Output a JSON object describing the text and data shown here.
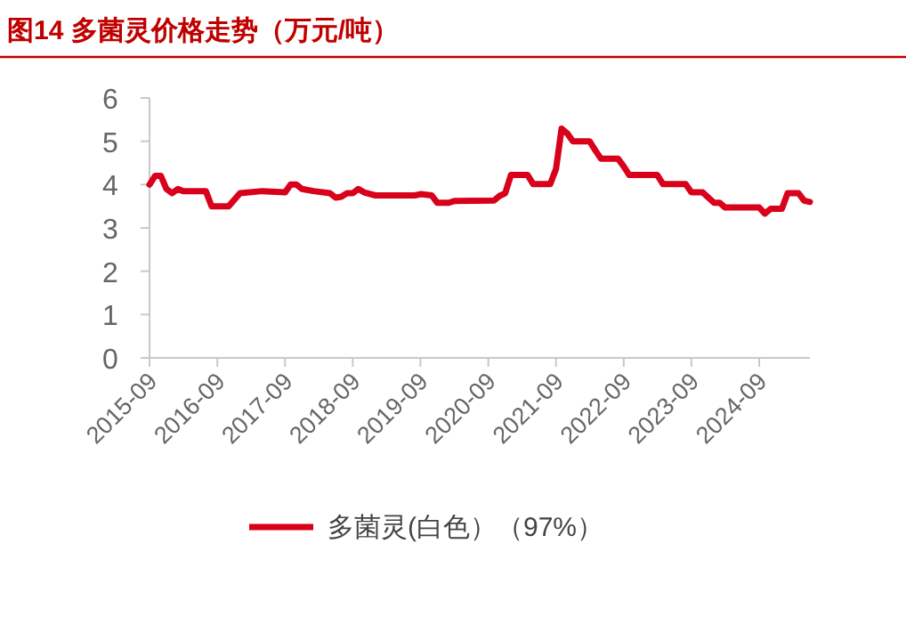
{
  "chart_data": {
    "type": "line",
    "title": "图14  多菌灵价格走势（万元/吨）",
    "x": [
      "2015-09",
      "2015-10",
      "2015-11",
      "2015-12",
      "2016-01",
      "2016-02",
      "2016-03",
      "2016-07",
      "2016-08",
      "2016-11",
      "2017-01",
      "2017-05",
      "2017-09",
      "2017-10",
      "2017-11",
      "2017-12",
      "2018-02",
      "2018-05",
      "2018-06",
      "2018-07",
      "2018-08",
      "2018-09",
      "2018-10",
      "2018-11",
      "2019-01",
      "2019-08",
      "2019-09",
      "2019-11",
      "2019-12",
      "2020-02",
      "2020-03",
      "2020-10",
      "2020-11",
      "2020-12",
      "2021-01",
      "2021-04",
      "2021-05",
      "2021-08",
      "2021-09",
      "2021-10",
      "2021-11",
      "2021-12",
      "2022-03",
      "2022-04",
      "2022-05",
      "2022-08",
      "2022-09",
      "2022-10",
      "2023-03",
      "2023-04",
      "2023-08",
      "2023-09",
      "2023-11",
      "2024-01",
      "2024-02",
      "2024-03",
      "2024-09",
      "2024-10",
      "2024-11",
      "2025-01",
      "2025-02",
      "2025-04",
      "2025-05",
      "2025-06"
    ],
    "series": [
      {
        "name": "多菌灵(白色）（97%）",
        "color": "#d9001b",
        "values": [
          4.0,
          4.2,
          4.2,
          3.9,
          3.8,
          3.9,
          3.85,
          3.85,
          3.5,
          3.5,
          3.8,
          3.85,
          3.82,
          4.0,
          4.0,
          3.9,
          3.85,
          3.8,
          3.7,
          3.72,
          3.8,
          3.8,
          3.9,
          3.82,
          3.75,
          3.75,
          3.78,
          3.75,
          3.58,
          3.58,
          3.62,
          3.63,
          3.74,
          3.8,
          4.22,
          4.22,
          4.01,
          4.01,
          4.36,
          5.29,
          5.18,
          5.0,
          5.0,
          4.79,
          4.6,
          4.6,
          4.42,
          4.22,
          4.22,
          4.01,
          4.01,
          3.82,
          3.82,
          3.58,
          3.58,
          3.47,
          3.47,
          3.33,
          3.44,
          3.44,
          3.8,
          3.8,
          3.63,
          3.6
        ]
      }
    ],
    "xlim": [
      "2015-09",
      "2025-06"
    ],
    "xticks": [
      "2015-09",
      "2016-09",
      "2017-09",
      "2018-09",
      "2019-09",
      "2020-09",
      "2021-09",
      "2022-09",
      "2023-09",
      "2024-09"
    ],
    "ylim": [
      0,
      6
    ],
    "yticks": [
      0,
      1,
      2,
      3,
      4,
      5,
      6
    ],
    "legend": "bottom",
    "marker": "none",
    "line_style": "solid"
  }
}
